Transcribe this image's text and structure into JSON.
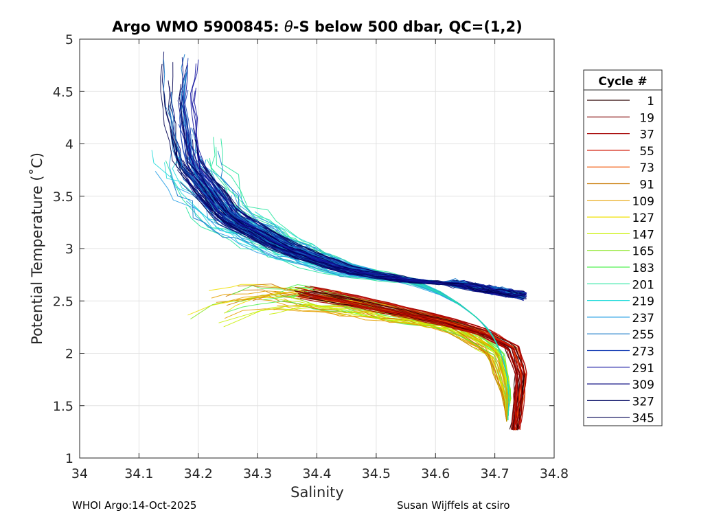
{
  "chart_data": {
    "type": "line",
    "title_parts": {
      "prefix": "Argo WMO 5900845: ",
      "theta": "θ",
      "suffix": "-S below 500 dbar,  QC=(1,2)"
    },
    "xlabel": "Salinity",
    "ylabel": "Potential Temperature (˚C)",
    "xlim": [
      34.0,
      34.8
    ],
    "ylim": [
      1.0,
      5.0
    ],
    "xticks": [
      "34",
      "34.1",
      "34.2",
      "34.3",
      "34.4",
      "34.5",
      "34.6",
      "34.7",
      "34.8"
    ],
    "yticks": [
      "1",
      "1.5",
      "2",
      "2.5",
      "3",
      "3.5",
      "4",
      "4.5",
      "5"
    ],
    "grid": true,
    "legend": {
      "title": "Cycle #",
      "placement": "outside-right",
      "entries": [
        "1",
        "19",
        "37",
        "55",
        "73",
        "91",
        "109",
        "127",
        "147",
        "165",
        "183",
        "201",
        "219",
        "237",
        "255",
        "273",
        "291",
        "309",
        "327",
        "345"
      ],
      "colors": [
        "#2b0000",
        "#800000",
        "#a50000",
        "#d21400",
        "#f05000",
        "#c87800",
        "#e6a000",
        "#f0e000",
        "#c8f000",
        "#8ce628",
        "#50f050",
        "#28e6a0",
        "#28dcdc",
        "#28a0e6",
        "#1478c8",
        "#143cb4",
        "#1414a0",
        "#0a0a80",
        "#050a64",
        "#000050"
      ]
    },
    "series_shape": {
      "note": "approximate envelope of profiles (salinity, potential temperature) by cycle group",
      "cold_warm_branch": [
        [
          34.17,
          4.9
        ],
        [
          34.165,
          4.4
        ],
        [
          34.18,
          3.8
        ],
        [
          34.25,
          3.3
        ],
        [
          34.35,
          3.0
        ],
        [
          34.45,
          2.8
        ],
        [
          34.55,
          2.7
        ],
        [
          34.65,
          2.65
        ],
        [
          34.75,
          2.55
        ]
      ],
      "early_cycles": [
        [
          34.38,
          2.58
        ],
        [
          34.46,
          2.5
        ],
        [
          34.54,
          2.4
        ],
        [
          34.62,
          2.3
        ],
        [
          34.68,
          2.2
        ],
        [
          34.73,
          2.05
        ],
        [
          34.745,
          1.8
        ],
        [
          34.74,
          1.5
        ],
        [
          34.735,
          1.27
        ]
      ],
      "mid_cycles": [
        [
          34.15,
          2.2
        ],
        [
          34.25,
          2.5
        ],
        [
          34.35,
          2.55
        ],
        [
          34.45,
          2.45
        ],
        [
          34.55,
          2.35
        ],
        [
          34.63,
          2.25
        ],
        [
          34.7,
          2.0
        ],
        [
          34.72,
          1.6
        ],
        [
          34.72,
          1.35
        ]
      ]
    },
    "footer_left": "WHOI Argo:14-Oct-2025",
    "footer_right": "Susan Wijffels at csiro"
  }
}
